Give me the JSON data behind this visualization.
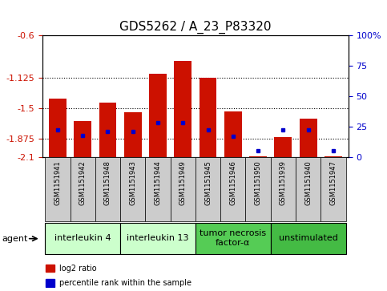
{
  "title": "GDS5262 / A_23_P83320",
  "samples": [
    "GSM1151941",
    "GSM1151942",
    "GSM1151948",
    "GSM1151943",
    "GSM1151944",
    "GSM1151949",
    "GSM1151945",
    "GSM1151946",
    "GSM1151950",
    "GSM1151939",
    "GSM1151940",
    "GSM1151947"
  ],
  "log2_ratio": [
    -1.38,
    -1.66,
    -1.43,
    -1.55,
    -1.08,
    -0.92,
    -1.13,
    -1.54,
    -2.09,
    -1.85,
    -1.63,
    -2.09
  ],
  "percentile": [
    22,
    18,
    21,
    21,
    28,
    28,
    22,
    17,
    5,
    22,
    22,
    5
  ],
  "ylim_left": [
    -2.1,
    -0.6
  ],
  "yticks_left": [
    -2.1,
    -1.875,
    -1.5,
    -1.125,
    -0.6
  ],
  "yticks_right": [
    0,
    25,
    50,
    75,
    100
  ],
  "bar_color": "#cc1100",
  "percentile_color": "#0000cc",
  "bar_bottom": -2.1,
  "grid_lines": [
    -1.125,
    -1.5,
    -1.875
  ],
  "agent_groups": [
    {
      "label": "interleukin 4",
      "start": 0,
      "end": 3,
      "color": "#ccffcc"
    },
    {
      "label": "interleukin 13",
      "start": 3,
      "end": 6,
      "color": "#ccffcc"
    },
    {
      "label": "tumor necrosis\nfactor-α",
      "start": 6,
      "end": 9,
      "color": "#55cc55"
    },
    {
      "label": "unstimulated",
      "start": 9,
      "end": 12,
      "color": "#44bb44"
    }
  ],
  "legend_log2_label": "log2 ratio",
  "legend_pct_label": "percentile rank within the sample",
  "title_fontsize": 11,
  "tick_fontsize": 8,
  "sample_fontsize": 6,
  "agent_fontsize": 8
}
